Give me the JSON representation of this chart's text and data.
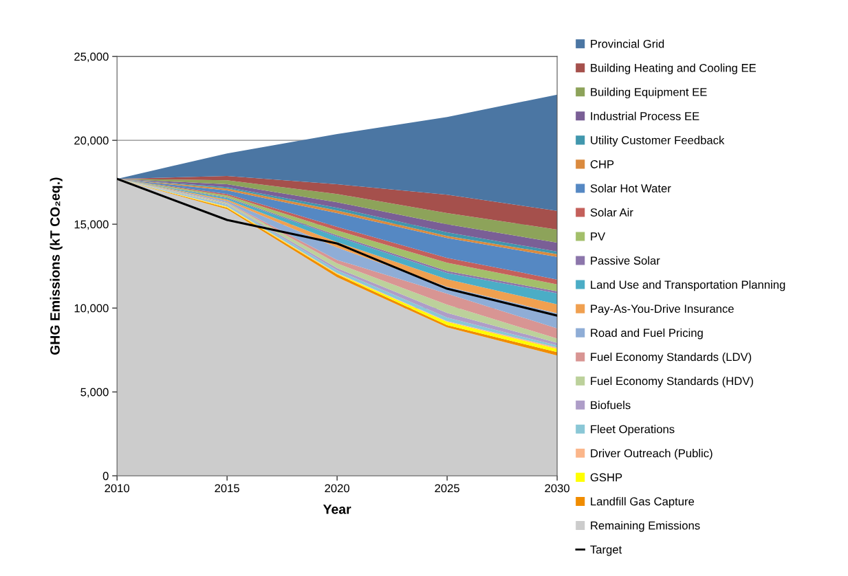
{
  "chart_data": {
    "type": "area",
    "stacked": true,
    "xlabel": "Year",
    "ylabel": "GHG Emissions (kT CO₂eq.)",
    "x": [
      2010,
      2015,
      2020,
      2025,
      2030
    ],
    "xlim": [
      2010,
      2030
    ],
    "xticks": [
      2010,
      2015,
      2020,
      2025,
      2030
    ],
    "ylim": [
      0,
      25000
    ],
    "yticks": [
      0,
      {
        "value": 5000,
        "label": "5,000"
      },
      {
        "value": 10000,
        "label": "10,000"
      },
      {
        "value": 15000,
        "label": "15,000"
      },
      {
        "value": 20000,
        "label": "20,000"
      },
      {
        "value": 25000,
        "label": "25,000"
      }
    ],
    "grid": "y",
    "legend": "right",
    "series": [
      {
        "name": "Remaining Emissions",
        "color": "#cccccc",
        "values": [
          17700,
          15900,
          11840,
          8850,
          7170
        ]
      },
      {
        "name": "Landfill Gas Capture",
        "color": "#f08c00",
        "values": [
          0,
          80,
          170,
          130,
          200
        ]
      },
      {
        "name": "GSHP",
        "color": "#ffff00",
        "values": [
          0,
          40,
          40,
          200,
          200
        ]
      },
      {
        "name": "Driver Outreach (Public)",
        "color": "#fbb68a",
        "values": [
          0,
          40,
          40,
          40,
          80
        ]
      },
      {
        "name": "Fleet Operations",
        "color": "#8ac7d6",
        "values": [
          0,
          90,
          160,
          210,
          120
        ]
      },
      {
        "name": "Biofuels",
        "color": "#ae9dc8",
        "values": [
          0,
          40,
          130,
          280,
          160
        ]
      },
      {
        "name": "Fuel Economy Standards (HDV)",
        "color": "#bcd19b",
        "values": [
          0,
          80,
          280,
          490,
          250
        ]
      },
      {
        "name": "Fuel Economy Standards (LDV)",
        "color": "#d89593",
        "values": [
          0,
          40,
          210,
          660,
          610
        ]
      },
      {
        "name": "Road and Fuel Pricing",
        "color": "#8fadd6",
        "values": [
          0,
          80,
          740,
          410,
          900
        ]
      },
      {
        "name": "Pay-As-You-Drive Insurance",
        "color": "#f0a050",
        "values": [
          0,
          80,
          320,
          450,
          530
        ]
      },
      {
        "name": "Land Use and Transportation Planning",
        "color": "#4badc6",
        "values": [
          0,
          90,
          330,
          370,
          660
        ]
      },
      {
        "name": "Passive Solar",
        "color": "#8c76ab",
        "values": [
          0,
          40,
          80,
          120,
          120
        ]
      },
      {
        "name": "PV",
        "color": "#a3bf6a",
        "values": [
          0,
          120,
          290,
          490,
          410
        ]
      },
      {
        "name": "Solar Air",
        "color": "#c4605b",
        "values": [
          0,
          80,
          210,
          290,
          290
        ]
      },
      {
        "name": "Solar Hot Water",
        "color": "#5588c3",
        "values": [
          0,
          210,
          820,
          1190,
          1350
        ]
      },
      {
        "name": "CHP",
        "color": "#da8a3e",
        "values": [
          0,
          120,
          160,
          120,
          160
        ]
      },
      {
        "name": "Utility Customer Feedback",
        "color": "#4197ad",
        "values": [
          0,
          80,
          160,
          210,
          160
        ]
      },
      {
        "name": "Industrial Process EE",
        "color": "#7a5f96",
        "values": [
          0,
          170,
          330,
          490,
          530
        ]
      },
      {
        "name": "Building Equipment EE",
        "color": "#8da35a",
        "values": [
          0,
          240,
          490,
          660,
          780
        ]
      },
      {
        "name": "Building Heating and Cooling EE",
        "color": "#a5504c",
        "values": [
          0,
          250,
          580,
          1100,
          1110
        ]
      },
      {
        "name": "Provincial Grid",
        "color": "#4b76a3",
        "values": [
          0,
          1350,
          2990,
          4630,
          6930
        ]
      },
      {
        "name": "Target",
        "type": "line",
        "color": "#000000",
        "values": [
          17700,
          15250,
          13850,
          11150,
          9550
        ]
      }
    ]
  }
}
